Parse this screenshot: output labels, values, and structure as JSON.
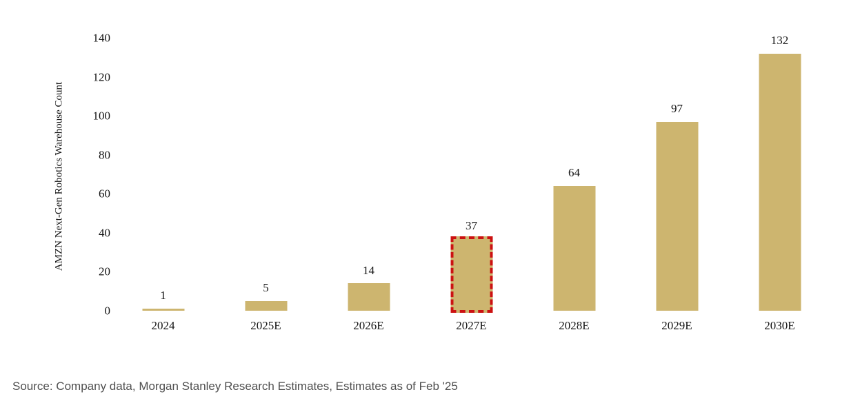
{
  "chart_data": {
    "type": "bar",
    "categories": [
      "2024",
      "2025E",
      "2026E",
      "2027E",
      "2028E",
      "2029E",
      "2030E"
    ],
    "values": [
      1,
      5,
      14,
      37,
      64,
      97,
      132
    ],
    "data_labels": [
      "1",
      "5",
      "14",
      "37",
      "64",
      "97",
      "132"
    ],
    "title": "",
    "xlabel": "",
    "ylabel": "AMZN Next-Gen Robotics Warehouse Count",
    "ylim": [
      0,
      140
    ],
    "yticks": [
      0,
      20,
      40,
      60,
      80,
      100,
      120,
      140
    ],
    "grid": false,
    "legend": false,
    "axis_lines": false,
    "bar_color": "#CDB56F",
    "text_color": "#141414",
    "highlight": {
      "category": "2027E",
      "style": "red-dashed-outline",
      "color": "#CC1111"
    }
  },
  "source_note": "Source: Company data, Morgan Stanley Research Estimates, Estimates as of Feb '25"
}
